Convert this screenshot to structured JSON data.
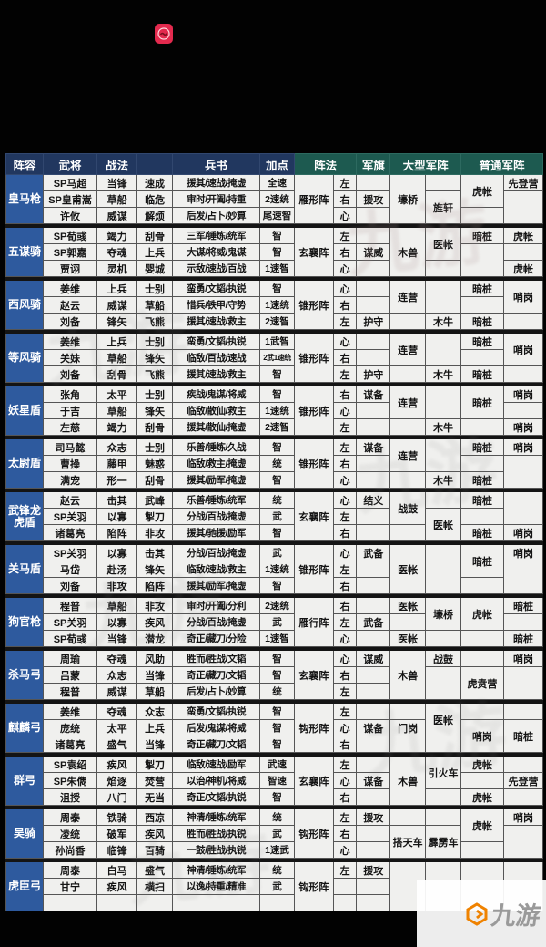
{
  "watermark": {
    "text": "九游"
  },
  "table": {
    "headers": {
      "lineup": "阵容",
      "general": "武将",
      "tactics": "战法",
      "books": "兵书",
      "points": "加点",
      "formation": "阵法",
      "flag": "军旗",
      "large_formation": "大型军阵",
      "normal_formation": "普通军阵"
    },
    "colors": {
      "header_left": "#21375f",
      "header_right": "#1d5a50",
      "lineup_bg": "#2e5a9e",
      "cell_bg": "#f0f0ee",
      "accent_red": "#e32a4e"
    },
    "groups": [
      {
        "name": "皇马枪",
        "formation": "雁形阵",
        "rows": [
          {
            "general": "SP马超",
            "s1": "当锋",
            "s2": "速成",
            "books": "援其/速战/掩虚",
            "points": "全速",
            "pos": "左",
            "flag": ""
          },
          {
            "general": "SP皇甫嵩",
            "s1": "草船",
            "s2": "临危",
            "books": "审时/开阖/持重",
            "points": "2速统",
            "pos": "右",
            "flag": "援攻"
          },
          {
            "general": "许攸",
            "s1": "威谋",
            "s2": "解烦",
            "books": "后发/占卜/妙算",
            "points": "尾速智",
            "pos": "心",
            "flag": ""
          }
        ],
        "big1": [
          {
            "t": "壕桥",
            "s": 3
          }
        ],
        "big2": [
          {
            "t": "",
            "s": 1
          },
          {
            "t": "旌轩",
            "s": 2
          }
        ],
        "norm1": [
          {
            "t": "虎帐",
            "s": 2
          },
          {
            "t": "",
            "s": 1
          }
        ],
        "norm2": [
          {
            "t": "先登营",
            "s": 1
          },
          {
            "t": "",
            "s": 2
          }
        ]
      },
      {
        "name": "五谋骑",
        "formation": "玄襄阵",
        "rows": [
          {
            "general": "SP荀彧",
            "s1": "竭力",
            "s2": "刮骨",
            "books": "三军/锤炼/统军",
            "points": "智",
            "pos": "左",
            "flag": ""
          },
          {
            "general": "SP郭嘉",
            "s1": "夺魂",
            "s2": "上兵",
            "books": "大谋/将威/鬼谋",
            "points": "智",
            "pos": "右",
            "flag": "谋威"
          },
          {
            "general": "贾诩",
            "s1": "灵机",
            "s2": "婴城",
            "books": "示敌/速战/百战",
            "points": "1速智",
            "pos": "心",
            "flag": ""
          }
        ],
        "big1": [
          {
            "t": "木兽",
            "s": 3
          }
        ],
        "big2": [
          {
            "t": "医帐",
            "s": 2
          },
          {
            "t": "",
            "s": 1
          }
        ],
        "norm1": [
          {
            "t": "暗桩",
            "s": 1
          },
          {
            "t": "",
            "s": 2
          }
        ],
        "norm2": [
          {
            "t": "虎帐",
            "s": 1
          },
          {
            "t": "",
            "s": 1
          },
          {
            "t": "虎帐",
            "s": 1
          }
        ]
      },
      {
        "name": "西风骑",
        "formation": "锥形阵",
        "rows": [
          {
            "general": "姜维",
            "s1": "上兵",
            "s2": "士别",
            "books": "蛮勇/文韬/执锐",
            "points": "智",
            "pos": "心",
            "flag": ""
          },
          {
            "general": "赵云",
            "s1": "威谋",
            "s2": "草船",
            "books": "惜兵/铁甲/守势",
            "points": "1速统",
            "pos": "右",
            "flag": ""
          },
          {
            "general": "刘备",
            "s1": "锋矢",
            "s2": "飞熊",
            "books": "援其/速战/救主",
            "points": "2速智",
            "pos": "左",
            "flag": "护守"
          }
        ],
        "big1": [
          {
            "t": "连营",
            "s": 2
          },
          {
            "t": "",
            "s": 1
          }
        ],
        "big2": [
          {
            "t": "",
            "s": 2
          },
          {
            "t": "木牛",
            "s": 1
          }
        ],
        "norm1": [
          {
            "t": "暗桩",
            "s": 1
          },
          {
            "t": "",
            "s": 1
          },
          {
            "t": "暗桩",
            "s": 1
          }
        ],
        "norm2": [
          {
            "t": "哨岗",
            "s": 2
          },
          {
            "t": "",
            "s": 1
          }
        ]
      },
      {
        "name": "等风骑",
        "formation": "锥形阵",
        "rows": [
          {
            "general": "姜维",
            "s1": "上兵",
            "s2": "士别",
            "books": "蛮勇/文韬/执锐",
            "points": "1武智",
            "pos": "心",
            "flag": ""
          },
          {
            "general": "关妹",
            "s1": "草船",
            "s2": "锋矢",
            "books": "临敌/百战/速战",
            "points": "2武1速统",
            "pos": "右",
            "flag": ""
          },
          {
            "general": "刘备",
            "s1": "刮骨",
            "s2": "飞熊",
            "books": "援其/速战/救主",
            "points": "智",
            "pos": "左",
            "flag": "护守"
          }
        ],
        "big1": [
          {
            "t": "连营",
            "s": 2
          },
          {
            "t": "",
            "s": 1
          }
        ],
        "big2": [
          {
            "t": "",
            "s": 2
          },
          {
            "t": "木牛",
            "s": 1
          }
        ],
        "norm1": [
          {
            "t": "暗桩",
            "s": 1
          },
          {
            "t": "",
            "s": 1
          },
          {
            "t": "暗桩",
            "s": 1
          }
        ],
        "norm2": [
          {
            "t": "哨岗",
            "s": 2
          },
          {
            "t": "",
            "s": 1
          }
        ]
      },
      {
        "name": "妖星盾",
        "formation": "锥形阵",
        "rows": [
          {
            "general": "张角",
            "s1": "太平",
            "s2": "士别",
            "books": "疾战/鬼谋/将威",
            "points": "智",
            "pos": "右",
            "flag": "谋备"
          },
          {
            "general": "于吉",
            "s1": "草船",
            "s2": "锋矢",
            "books": "临敌/散仙/救主",
            "points": "1速统",
            "pos": "心",
            "flag": ""
          },
          {
            "general": "左慈",
            "s1": "竭力",
            "s2": "刮骨",
            "books": "援其/散仙/掩虚",
            "points": "2速智",
            "pos": "左",
            "flag": ""
          }
        ],
        "big1": [
          {
            "t": "连营",
            "s": 2
          },
          {
            "t": "",
            "s": 1
          }
        ],
        "big2": [
          {
            "t": "",
            "s": 2
          },
          {
            "t": "木牛",
            "s": 1
          }
        ],
        "norm1": [
          {
            "t": "暗桩",
            "s": 2
          },
          {
            "t": "",
            "s": 1
          }
        ],
        "norm2": [
          {
            "t": "哨岗",
            "s": 1
          },
          {
            "t": "",
            "s": 1
          },
          {
            "t": "哨岗",
            "s": 1
          }
        ]
      },
      {
        "name": "太尉盾",
        "formation": "锥形阵",
        "rows": [
          {
            "general": "司马懿",
            "s1": "众志",
            "s2": "士别",
            "books": "乐善/锤炼/久战",
            "points": "智",
            "pos": "左",
            "flag": "谋备"
          },
          {
            "general": "曹操",
            "s1": "藤甲",
            "s2": "魅惑",
            "books": "临敌/救主/掩虚",
            "points": "统",
            "pos": "右",
            "flag": ""
          },
          {
            "general": "满宠",
            "s1": "形一",
            "s2": "刮骨",
            "books": "援其/励军/掩虚",
            "points": "智",
            "pos": "心",
            "flag": ""
          }
        ],
        "big1": [
          {
            "t": "连营",
            "s": 2
          },
          {
            "t": "",
            "s": 1
          }
        ],
        "big2": [
          {
            "t": "",
            "s": 2
          },
          {
            "t": "木牛",
            "s": 1
          }
        ],
        "norm1": [
          {
            "t": "暗桩",
            "s": 1
          },
          {
            "t": "",
            "s": 1
          },
          {
            "t": "暗桩",
            "s": 1
          }
        ],
        "norm2": [
          {
            "t": "哨岗",
            "s": 1
          },
          {
            "t": "",
            "s": 2
          }
        ]
      },
      {
        "name": "武锋龙虎盾",
        "formation": "玄襄阵",
        "rows": [
          {
            "general": "赵云",
            "s1": "击其",
            "s2": "武峰",
            "books": "乐善/锤炼/统军",
            "points": "统",
            "pos": "心",
            "flag": "结义"
          },
          {
            "general": "SP关羽",
            "s1": "以寡",
            "s2": "掣刀",
            "books": "分战/百战/掩虚",
            "points": "武",
            "pos": "左",
            "flag": ""
          },
          {
            "general": "诸葛亮",
            "s1": "陷阵",
            "s2": "非攻",
            "books": "援其/驰援/励军",
            "points": "智",
            "pos": "右",
            "flag": ""
          }
        ],
        "big1": [
          {
            "t": "战鼓",
            "s": 2
          },
          {
            "t": "",
            "s": 1
          }
        ],
        "big2": [
          {
            "t": "",
            "s": 1
          },
          {
            "t": "医帐",
            "s": 2
          }
        ],
        "norm1": [
          {
            "t": "暗桩",
            "s": 1
          },
          {
            "t": "",
            "s": 1
          },
          {
            "t": "暗桩",
            "s": 1
          }
        ],
        "norm2": [
          {
            "t": "",
            "s": 2
          },
          {
            "t": "哨岗",
            "s": 1
          }
        ]
      },
      {
        "name": "关马盾",
        "formation": "锥形阵",
        "rows": [
          {
            "general": "SP关羽",
            "s1": "以寡",
            "s2": "击其",
            "books": "分战/百战/掩虚",
            "points": "武",
            "pos": "心",
            "flag": "武备"
          },
          {
            "general": "马岱",
            "s1": "赴汤",
            "s2": "锋矢",
            "books": "临敌/速战/救主",
            "points": "1速统",
            "pos": "左",
            "flag": ""
          },
          {
            "general": "刘备",
            "s1": "非攻",
            "s2": "陷阵",
            "books": "援其/励军/掩虚",
            "points": "智",
            "pos": "右",
            "flag": ""
          }
        ],
        "big1": [
          {
            "t": "医帐",
            "s": 3
          }
        ],
        "big2": [
          {
            "t": "",
            "s": 3
          }
        ],
        "norm1": [
          {
            "t": "暗桩",
            "s": 2
          },
          {
            "t": "",
            "s": 1
          }
        ],
        "norm2": [
          {
            "t": "哨岗",
            "s": 1
          },
          {
            "t": "",
            "s": 2
          }
        ]
      },
      {
        "name": "狗官枪",
        "formation": "雁行阵",
        "rows": [
          {
            "general": "程普",
            "s1": "草船",
            "s2": "非攻",
            "books": "审时/开阖/分利",
            "points": "2速统",
            "pos": "右",
            "flag": ""
          },
          {
            "general": "SP关羽",
            "s1": "以寡",
            "s2": "疾风",
            "books": "分战/百战/掩虚",
            "points": "武",
            "pos": "左",
            "flag": "武备"
          },
          {
            "general": "SP荀彧",
            "s1": "当锋",
            "s2": "潜龙",
            "books": "奇正/藏刀/分险",
            "points": "1速智",
            "pos": "心",
            "flag": ""
          }
        ],
        "big1": [
          {
            "t": "医帐",
            "s": 1
          },
          {
            "t": "",
            "s": 1
          },
          {
            "t": "医帐",
            "s": 1
          }
        ],
        "big2": [
          {
            "t": "壕桥",
            "s": 2
          },
          {
            "t": "",
            "s": 1
          }
        ],
        "norm1": [
          {
            "t": "虎帐",
            "s": 2
          },
          {
            "t": "",
            "s": 1
          }
        ],
        "norm2": [
          {
            "t": "暗桩",
            "s": 1
          },
          {
            "t": "",
            "s": 1
          },
          {
            "t": "暗桩",
            "s": 1
          }
        ]
      },
      {
        "name": "杀马弓",
        "formation": "玄襄阵",
        "rows": [
          {
            "general": "周瑜",
            "s1": "夺魂",
            "s2": "风助",
            "books": "胜而/胜战/文韬",
            "points": "智",
            "pos": "心",
            "flag": "谋威"
          },
          {
            "general": "吕蒙",
            "s1": "众志",
            "s2": "当锋",
            "books": "奇正/藏刀/文韬",
            "points": "智",
            "pos": "右",
            "flag": ""
          },
          {
            "general": "程普",
            "s1": "威谋",
            "s2": "草船",
            "books": "后发/占卜/妙算",
            "points": "统",
            "pos": "左",
            "flag": ""
          }
        ],
        "big1": [
          {
            "t": "木兽",
            "s": 3
          }
        ],
        "big2": [
          {
            "t": "战鼓",
            "s": 1
          },
          {
            "t": "",
            "s": 2
          }
        ],
        "norm1": [
          {
            "t": "",
            "s": 1
          },
          {
            "t": "虎贲营",
            "s": 2
          }
        ],
        "norm2": [
          {
            "t": "哨岗",
            "s": 1
          },
          {
            "t": "",
            "s": 2
          }
        ]
      },
      {
        "name": "麒麟弓",
        "formation": "钩形阵",
        "rows": [
          {
            "general": "姜维",
            "s1": "夺魂",
            "s2": "众志",
            "books": "蛮勇/文韬/执锐",
            "points": "智",
            "pos": "左",
            "flag": ""
          },
          {
            "general": "庞统",
            "s1": "太平",
            "s2": "上兵",
            "books": "后发/鬼谋/将威",
            "points": "智",
            "pos": "心",
            "flag": "谋备"
          },
          {
            "general": "诸葛亮",
            "s1": "盛气",
            "s2": "当锋",
            "books": "奇正/藏刀/文韬",
            "points": "智",
            "pos": "右",
            "flag": ""
          }
        ],
        "big1": [
          {
            "t": "",
            "s": 1
          },
          {
            "t": "门岗",
            "s": 1
          },
          {
            "t": "",
            "s": 1
          }
        ],
        "big2": [
          {
            "t": "医帐",
            "s": 2
          },
          {
            "t": "",
            "s": 1
          }
        ],
        "norm1": [
          {
            "t": "",
            "s": 1
          },
          {
            "t": "哨岗",
            "s": 2
          }
        ],
        "norm2": [
          {
            "t": "",
            "s": 1
          },
          {
            "t": "暗桩",
            "s": 2
          }
        ]
      },
      {
        "name": "群弓",
        "formation": "玄襄阵",
        "rows": [
          {
            "general": "SP袁绍",
            "s1": "疾风",
            "s2": "掣刀",
            "books": "临敌/速战/励军",
            "points": "武速",
            "pos": "左",
            "flag": ""
          },
          {
            "general": "SP朱儁",
            "s1": "焰逐",
            "s2": "焚营",
            "books": "以治/神机/将威",
            "points": "智速",
            "pos": "心",
            "flag": "谋备"
          },
          {
            "general": "沮授",
            "s1": "八门",
            "s2": "无当",
            "books": "奇正/文韬/执锐",
            "points": "智",
            "pos": "右",
            "flag": ""
          }
        ],
        "big1": [
          {
            "t": "木兽",
            "s": 3
          }
        ],
        "big2": [
          {
            "t": "引火车",
            "s": 2
          },
          {
            "t": "",
            "s": 1
          }
        ],
        "norm1": [
          {
            "t": "虎帐",
            "s": 1
          },
          {
            "t": "",
            "s": 1
          },
          {
            "t": "虎帐",
            "s": 1
          }
        ],
        "norm2": [
          {
            "t": "",
            "s": 1
          },
          {
            "t": "先登营",
            "s": 1
          },
          {
            "t": "",
            "s": 1
          }
        ]
      },
      {
        "name": "吴骑",
        "formation": "钩形阵",
        "rows": [
          {
            "general": "周泰",
            "s1": "铁骑",
            "s2": "西凉",
            "books": "神清/锤炼/统军",
            "points": "统",
            "pos": "左",
            "flag": "援攻"
          },
          {
            "general": "凌统",
            "s1": "破军",
            "s2": "疾风",
            "books": "胜而/胜战/执锐",
            "points": "武",
            "pos": "右",
            "flag": ""
          },
          {
            "general": "孙尚香",
            "s1": "临锋",
            "s2": "百骑",
            "books": "一鼓/胜战/执锐",
            "points": "1速武",
            "pos": "心",
            "flag": ""
          }
        ],
        "big1": [
          {
            "t": "",
            "s": 1
          },
          {
            "t": "搭天车",
            "s": 2
          }
        ],
        "big2": [
          {
            "t": "",
            "s": 1
          },
          {
            "t": "霹雳车",
            "s": 2
          }
        ],
        "norm1": [
          {
            "t": "虎帐",
            "s": 2
          },
          {
            "t": "",
            "s": 1
          }
        ],
        "norm2": [
          {
            "t": "哨岗",
            "s": 1
          },
          {
            "t": "",
            "s": 2
          }
        ]
      },
      {
        "name": "虎臣弓",
        "formation": "钩形阵",
        "rows": [
          {
            "general": "周泰",
            "s1": "白马",
            "s2": "盛气",
            "books": "神清/锤炼/统军",
            "points": "统",
            "pos": "左",
            "flag": "援攻"
          },
          {
            "general": "甘宁",
            "s1": "疾风",
            "s2": "横扫",
            "books": "以逸/持重/精准",
            "points": "武",
            "pos": "",
            "flag": ""
          },
          {
            "general": "",
            "s1": "",
            "s2": "",
            "books": "",
            "points": "",
            "pos": "",
            "flag": ""
          }
        ],
        "big1": [
          {
            "t": "",
            "s": 3
          }
        ],
        "big2": [
          {
            "t": "",
            "s": 3
          }
        ],
        "norm1": [
          {
            "t": "",
            "s": 3
          }
        ],
        "norm2": [
          {
            "t": "",
            "s": 3
          }
        ]
      }
    ]
  }
}
